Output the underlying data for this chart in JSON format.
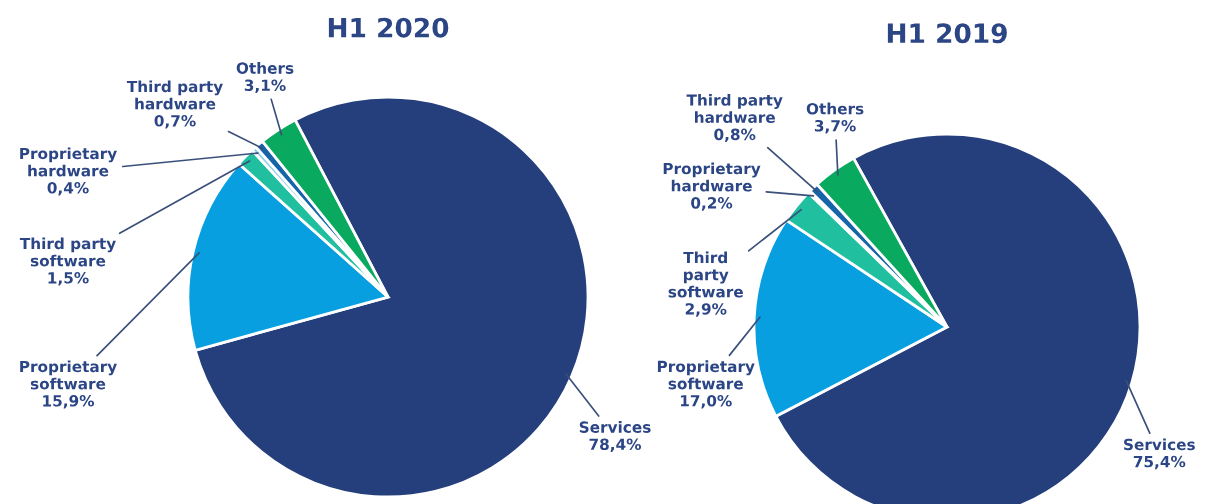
{
  "chart_data": [
    {
      "type": "pie",
      "title": "H1 2020",
      "categories": [
        "Services",
        "Proprietary\nsoftware",
        "Third party\nsoftware",
        "Proprietary\nhardware",
        "Third party\nhardware",
        "Others"
      ],
      "values": [
        78.4,
        15.9,
        1.5,
        0.4,
        0.7,
        3.1
      ],
      "value_labels": [
        "78,4%",
        "15,9%",
        "1,5%",
        "0,4%",
        "0,7%",
        "3,1%"
      ],
      "colors": [
        "#253f7c",
        "#079fe0",
        "#1fbfa0",
        "#8fd0ea",
        "#1565a8",
        "#0aa960"
      ]
    },
    {
      "type": "pie",
      "title": "H1 2019",
      "categories": [
        "Services",
        "Proprietary\nsoftware",
        "Third\nparty\nsoftware",
        "Proprietary\nhardware",
        "Third party\nhardware",
        "Others"
      ],
      "values": [
        75.4,
        17.0,
        2.9,
        0.2,
        0.8,
        3.7
      ],
      "value_labels": [
        "75,4%",
        "17,0%",
        "2,9%",
        "0,2%",
        "0,8%",
        "3,7%"
      ],
      "colors": [
        "#253f7c",
        "#079fe0",
        "#1fbfa0",
        "#8fd0ea",
        "#1565a8",
        "#0aa960"
      ]
    }
  ]
}
